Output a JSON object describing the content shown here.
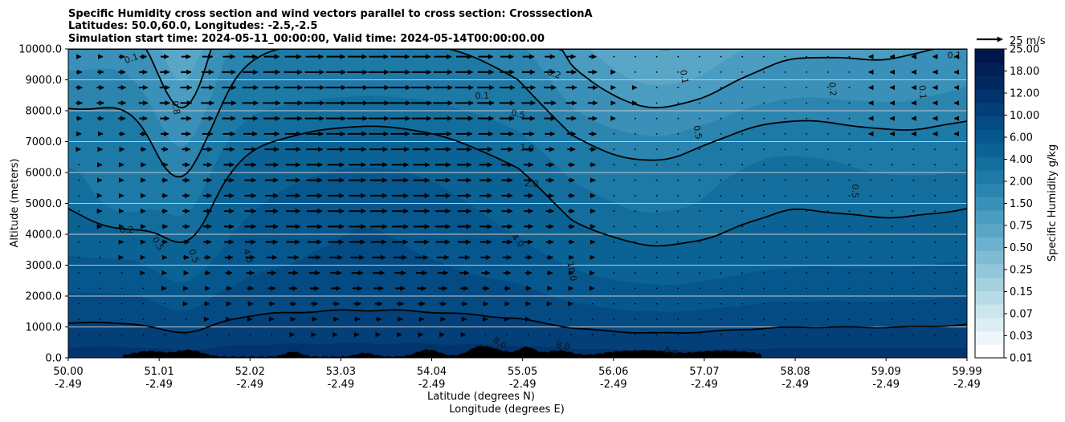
{
  "chart_data": {
    "type": "contourf-cross-section",
    "title_lines": [
      "Specific Humidity cross section and wind vectors parallel to cross section: CrosssectionA",
      "Latitudes: 50.0,60.0, Longitudes: -2.5,-2.5",
      "Simulation start time: 2024-05-11_00:00:00, Valid time: 2024-05-14T00:00:00.00"
    ],
    "xlabel_lat": "Latitude (degrees N)",
    "xlabel_lon": "Longitude (degrees E)",
    "ylabel": "Altitude (meters)",
    "xlim": [
      50.0,
      59.99
    ],
    "ylim": [
      0,
      10000
    ],
    "x_ticks": [
      {
        "lat": "50.00",
        "lon": "-2.49",
        "value": 50.0
      },
      {
        "lat": "51.01",
        "lon": "-2.49",
        "value": 51.01
      },
      {
        "lat": "52.02",
        "lon": "-2.49",
        "value": 52.02
      },
      {
        "lat": "53.03",
        "lon": "-2.49",
        "value": 53.03
      },
      {
        "lat": "54.04",
        "lon": "-2.49",
        "value": 54.04
      },
      {
        "lat": "55.05",
        "lon": "-2.49",
        "value": 55.05
      },
      {
        "lat": "56.06",
        "lon": "-2.49",
        "value": 56.06
      },
      {
        "lat": "57.07",
        "lon": "-2.49",
        "value": 57.07
      },
      {
        "lat": "58.08",
        "lon": "-2.49",
        "value": 58.08
      },
      {
        "lat": "59.09",
        "lon": "-2.49",
        "value": 59.09
      },
      {
        "lat": "59.99",
        "lon": "-2.49",
        "value": 59.99
      }
    ],
    "y_ticks": [
      "0.0",
      "1000.0",
      "2000.0",
      "3000.0",
      "4000.0",
      "5000.0",
      "6000.0",
      "7000.0",
      "8000.0",
      "9000.0",
      "10000.0"
    ],
    "grid": true,
    "colorbar": {
      "label": "Specific Humidity g/kg",
      "levels": [
        0.01,
        0.02,
        0.03,
        0.05,
        0.07,
        0.1,
        0.15,
        0.25,
        0.35,
        0.5,
        0.75,
        1.0,
        1.5,
        2.0,
        3.0,
        4.0,
        6.0,
        8.0,
        10.0,
        12.0,
        15.0,
        18.0,
        22.0,
        25.0
      ],
      "tick_labels": [
        "0.01",
        "0.03",
        "0.07",
        "0.15",
        "0.25",
        "0.50",
        "0.75",
        "1.50",
        "2.00",
        "4.00",
        "6.00",
        "10.00",
        "12.00",
        "18.00",
        "25.00"
      ],
      "colors": [
        "#ffffff",
        "#eef6f9",
        "#dcedf3",
        "#cbe4ed",
        "#b7dae7",
        "#a4d0e0",
        "#92c6da",
        "#7fbcd3",
        "#6cb1cd",
        "#5aa6c6",
        "#4a9cc0",
        "#3a90b8",
        "#2b85af",
        "#1d79a6",
        "#136e9d",
        "#0b6395",
        "#06578d",
        "#044b84",
        "#033f78",
        "#02336c",
        "#022860",
        "#021f56",
        "#01174c"
      ]
    },
    "quiver_key": {
      "label": "25 m/s",
      "speed": 25
    },
    "contour_labels": [
      {
        "text": "0.1",
        "x": 50.7,
        "y": 9700,
        "rot": -20
      },
      {
        "text": "0.1",
        "x": 54.6,
        "y": 8500,
        "rot": 0
      },
      {
        "text": "0.1",
        "x": 56.85,
        "y": 9100,
        "rot": 80
      },
      {
        "text": "0.1",
        "x": 59.5,
        "y": 8600,
        "rot": 85
      },
      {
        "text": "0.1",
        "x": 59.85,
        "y": 9800,
        "rot": 0
      },
      {
        "text": "0.2",
        "x": 55.4,
        "y": 9200,
        "rot": 15
      },
      {
        "text": "0.2",
        "x": 58.5,
        "y": 8700,
        "rot": 85
      },
      {
        "text": "0.2",
        "x": 50.65,
        "y": 4150,
        "rot": 0
      },
      {
        "text": "0.5",
        "x": 55.0,
        "y": 7900,
        "rot": 10
      },
      {
        "text": "0.5",
        "x": 57.0,
        "y": 7300,
        "rot": 80
      },
      {
        "text": "0.5",
        "x": 58.75,
        "y": 5400,
        "rot": 90
      },
      {
        "text": "0.5",
        "x": 51.0,
        "y": 3700,
        "rot": 60
      },
      {
        "text": "0.5",
        "x": 51.4,
        "y": 3300,
        "rot": 70
      },
      {
        "text": "0.8",
        "x": 51.2,
        "y": 8100,
        "rot": 80
      },
      {
        "text": "1.0",
        "x": 55.1,
        "y": 6800,
        "rot": 5
      },
      {
        "text": "2.0",
        "x": 55.15,
        "y": 5650,
        "rot": 5
      },
      {
        "text": "4.0",
        "x": 55.0,
        "y": 3800,
        "rot": 50
      },
      {
        "text": "4.0",
        "x": 52.0,
        "y": 3300,
        "rot": 75
      },
      {
        "text": "10.0",
        "x": 55.6,
        "y": 2800,
        "rot": 80
      },
      {
        "text": "8.0",
        "x": 54.8,
        "y": 500,
        "rot": 30
      },
      {
        "text": "8.0",
        "x": 55.5,
        "y": 400,
        "rot": 10
      },
      {
        "text": "8.0",
        "x": 56.7,
        "y": 200,
        "rot": 20
      }
    ]
  }
}
